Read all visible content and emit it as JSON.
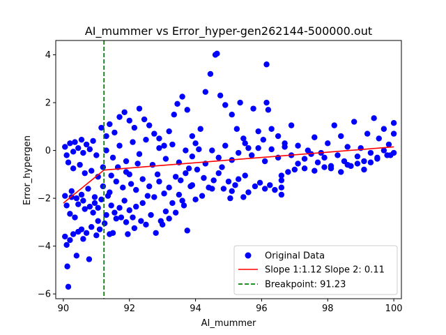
{
  "chart_data": {
    "type": "scatter",
    "title": "AI_mummer vs Error_hyper-gen262144-500000.out",
    "xlabel": "AI_mummer",
    "ylabel": "Error_hypergen",
    "xlim": [
      89.77,
      100.23
    ],
    "ylim": [
      -6.2,
      4.6
    ],
    "xticks": [
      90,
      92,
      94,
      96,
      98,
      100
    ],
    "xtick_labels": [
      "90",
      "92",
      "94",
      "96",
      "98",
      "100"
    ],
    "yticks": [
      -6,
      -4,
      -2,
      0,
      2,
      4
    ],
    "ytick_labels": [
      "−6",
      "−4",
      "−2",
      "0",
      "2",
      "4"
    ],
    "grid": false,
    "legend_position": "bottom-right",
    "series": [
      {
        "name": "Original Data",
        "kind": "scatter",
        "color": "#0000ff",
        "points": [
          [
            90.15,
            -5.7
          ],
          [
            90.12,
            -4.85
          ],
          [
            90.78,
            -4.55
          ],
          [
            90.4,
            -4.4
          ],
          [
            90.1,
            -3.95
          ],
          [
            90.05,
            -3.6
          ],
          [
            90.2,
            -3.75
          ],
          [
            90.3,
            -3.5
          ],
          [
            90.45,
            -3.4
          ],
          [
            90.6,
            -3.7
          ],
          [
            90.55,
            -3.3
          ],
          [
            90.7,
            -3.45
          ],
          [
            90.85,
            -3.2
          ],
          [
            91.0,
            -3.55
          ],
          [
            91.1,
            -3.3
          ],
          [
            91.25,
            -3.05
          ],
          [
            91.4,
            -3.5
          ],
          [
            91.5,
            -3.45
          ],
          [
            91.6,
            -2.85
          ],
          [
            91.3,
            -2.7
          ],
          [
            91.05,
            -2.95
          ],
          [
            90.9,
            -2.6
          ],
          [
            90.65,
            -2.45
          ],
          [
            90.35,
            -2.8
          ],
          [
            90.2,
            -2.65
          ],
          [
            90.1,
            -2.3
          ],
          [
            90.05,
            -1.9
          ],
          [
            90.25,
            -1.7
          ],
          [
            90.4,
            -2.0
          ],
          [
            90.55,
            -1.85
          ],
          [
            90.75,
            -1.6
          ],
          [
            90.95,
            -1.95
          ],
          [
            91.15,
            -2.05
          ],
          [
            91.35,
            -1.9
          ],
          [
            91.45,
            -2.3
          ],
          [
            91.55,
            -2.6
          ],
          [
            91.7,
            -2.4
          ],
          [
            91.85,
            -2.1
          ],
          [
            92.0,
            -2.5
          ],
          [
            92.1,
            -2.8
          ],
          [
            92.2,
            -2.35
          ],
          [
            92.35,
            -2.95
          ],
          [
            92.5,
            -3.1
          ],
          [
            92.65,
            -2.7
          ],
          [
            92.8,
            -3.45
          ],
          [
            92.95,
            -2.95
          ],
          [
            93.1,
            -2.55
          ],
          [
            93.2,
            -2.85
          ],
          [
            93.3,
            -2.2
          ],
          [
            93.5,
            -1.85
          ],
          [
            93.65,
            -2.3
          ],
          [
            93.75,
            -3.35
          ],
          [
            93.85,
            -1.5
          ],
          [
            94.0,
            -2.05
          ],
          [
            92.05,
            -1.4
          ],
          [
            92.2,
            -1.65
          ],
          [
            92.4,
            -1.2
          ],
          [
            92.6,
            -1.5
          ],
          [
            92.75,
            -1.95
          ],
          [
            92.9,
            -1.3
          ],
          [
            93.05,
            -1.8
          ],
          [
            93.2,
            -1.55
          ],
          [
            93.4,
            -1.1
          ],
          [
            93.55,
            -1.25
          ],
          [
            93.7,
            -0.95
          ],
          [
            93.9,
            -1.45
          ],
          [
            94.05,
            -0.8
          ],
          [
            94.25,
            -1.15
          ],
          [
            94.4,
            -1.55
          ],
          [
            94.55,
            -1.25
          ],
          [
            94.7,
            -0.95
          ],
          [
            94.85,
            -1.6
          ],
          [
            95.0,
            -1.3
          ],
          [
            95.1,
            -1.7
          ],
          [
            95.3,
            -1.2
          ],
          [
            95.45,
            -1.95
          ],
          [
            95.6,
            -1.75
          ],
          [
            95.8,
            -1.5
          ],
          [
            95.95,
            -1.35
          ],
          [
            96.1,
            -1.6
          ],
          [
            96.25,
            -1.45
          ],
          [
            96.4,
            -1.65
          ],
          [
            96.6,
            -1.85
          ],
          [
            96.6,
            -1.55
          ],
          [
            96.6,
            -1.25
          ],
          [
            96.6,
            -1.05
          ],
          [
            96.8,
            -0.9
          ],
          [
            97.0,
            -0.8
          ],
          [
            97.3,
            -0.75
          ],
          [
            97.6,
            -0.85
          ],
          [
            97.9,
            -0.7
          ],
          [
            98.1,
            -0.65
          ],
          [
            98.4,
            -0.9
          ],
          [
            98.6,
            -0.6
          ],
          [
            98.9,
            -0.55
          ],
          [
            99.1,
            -0.8
          ],
          [
            99.3,
            -0.5
          ],
          [
            99.5,
            -0.35
          ],
          [
            99.8,
            -0.2
          ],
          [
            100.0,
            -0.1
          ],
          [
            90.05,
            0.15
          ],
          [
            90.1,
            -0.2
          ],
          [
            90.2,
            0.3
          ],
          [
            90.3,
            -0.05
          ],
          [
            90.35,
            0.35
          ],
          [
            90.45,
            0.1
          ],
          [
            90.55,
            0.45
          ],
          [
            90.6,
            -0.1
          ],
          [
            90.7,
            0.25
          ],
          [
            90.8,
            0.05
          ],
          [
            90.9,
            0.4
          ],
          [
            91.0,
            -0.2
          ],
          [
            90.15,
            -0.5
          ],
          [
            90.3,
            -0.75
          ],
          [
            90.5,
            -0.6
          ],
          [
            90.65,
            -0.95
          ],
          [
            90.85,
            -0.85
          ],
          [
            91.05,
            -1.1
          ],
          [
            91.2,
            -0.7
          ],
          [
            91.3,
            0.6
          ],
          [
            91.15,
            0.95
          ],
          [
            91.4,
            1.1
          ],
          [
            91.55,
            0.75
          ],
          [
            91.7,
            1.4
          ],
          [
            91.85,
            1.6
          ],
          [
            92.0,
            1.25
          ],
          [
            92.15,
            0.95
          ],
          [
            92.3,
            1.75
          ],
          [
            92.45,
            1.3
          ],
          [
            92.6,
            1.05
          ],
          [
            92.75,
            0.7
          ],
          [
            92.9,
            0.5
          ],
          [
            93.05,
            0.2
          ],
          [
            93.2,
            0.8
          ],
          [
            93.35,
            1.5
          ],
          [
            93.45,
            1.95
          ],
          [
            93.6,
            2.25
          ],
          [
            93.75,
            1.7
          ],
          [
            93.9,
            0.6
          ],
          [
            94.0,
            0.3
          ],
          [
            94.15,
            0.9
          ],
          [
            94.3,
            2.45
          ],
          [
            94.45,
            3.2
          ],
          [
            94.6,
            4.0
          ],
          [
            94.65,
            4.05
          ],
          [
            94.75,
            2.3
          ],
          [
            94.9,
            1.9
          ],
          [
            95.1,
            1.5
          ],
          [
            95.25,
            0.9
          ],
          [
            95.35,
            2.0
          ],
          [
            95.45,
            0.5
          ],
          [
            95.6,
            0.1
          ],
          [
            95.75,
            1.75
          ],
          [
            95.9,
            0.8
          ],
          [
            96.05,
            0.45
          ],
          [
            96.15,
            3.6
          ],
          [
            96.15,
            2.0
          ],
          [
            96.2,
            1.7
          ],
          [
            96.3,
            0.9
          ],
          [
            96.5,
            0.6
          ],
          [
            96.7,
            0.3
          ],
          [
            96.9,
            1.05
          ],
          [
            97.1,
            0.2
          ],
          [
            97.4,
            0.0
          ],
          [
            97.6,
            0.55
          ],
          [
            97.8,
            -0.1
          ],
          [
            98.0,
            0.3
          ],
          [
            98.2,
            1.05
          ],
          [
            98.4,
            0.6
          ],
          [
            98.6,
            0.15
          ],
          [
            98.8,
            1.2
          ],
          [
            99.0,
            0.1
          ],
          [
            99.2,
            0.7
          ],
          [
            99.4,
            1.35
          ],
          [
            99.55,
            0.5
          ],
          [
            99.7,
            0.9
          ],
          [
            99.85,
            0.25
          ],
          [
            100.0,
            1.15
          ],
          [
            100.0,
            0.7
          ],
          [
            91.3,
            0.0
          ],
          [
            91.5,
            -0.3
          ],
          [
            91.7,
            0.2
          ],
          [
            91.9,
            -0.45
          ],
          [
            92.1,
            0.35
          ],
          [
            92.3,
            -0.15
          ],
          [
            92.5,
            0.45
          ],
          [
            92.7,
            -0.6
          ],
          [
            92.9,
            0.1
          ],
          [
            93.1,
            -0.35
          ],
          [
            93.3,
            0.25
          ],
          [
            93.5,
            -0.5
          ],
          [
            93.7,
            0.0
          ],
          [
            93.9,
            -0.25
          ],
          [
            94.1,
            0.05
          ],
          [
            94.3,
            -0.55
          ],
          [
            94.5,
            0.0
          ],
          [
            94.7,
            -0.3
          ],
          [
            94.9,
            0.2
          ],
          [
            95.1,
            -0.4
          ],
          [
            95.3,
            -0.1
          ],
          [
            95.5,
            0.3
          ],
          [
            95.7,
            -0.2
          ],
          [
            95.9,
            0.1
          ],
          [
            96.1,
            -0.45
          ],
          [
            96.3,
            0.05
          ],
          [
            96.5,
            -0.3
          ],
          [
            96.7,
            0.15
          ],
          [
            96.9,
            -0.2
          ],
          [
            97.1,
            -0.55
          ],
          [
            97.3,
            -0.35
          ],
          [
            97.5,
            -0.15
          ],
          [
            97.7,
            -0.5
          ],
          [
            97.9,
            -0.3
          ],
          [
            98.1,
            -0.75
          ],
          [
            98.3,
            -0.2
          ],
          [
            98.5,
            -0.45
          ],
          [
            98.7,
            -0.65
          ],
          [
            98.9,
            -0.25
          ],
          [
            99.1,
            -0.45
          ],
          [
            99.3,
            -0.1
          ],
          [
            99.5,
            -0.3
          ],
          [
            99.7,
            0.0
          ],
          [
            99.9,
            -0.2
          ],
          [
            91.2,
            -1.5
          ],
          [
            91.4,
            -1.75
          ],
          [
            91.6,
            -1.3
          ],
          [
            91.8,
            -1.55
          ],
          [
            92.0,
            -1.0
          ],
          [
            91.95,
            -3.5
          ],
          [
            91.9,
            -3.0
          ],
          [
            92.15,
            -3.25
          ],
          [
            92.4,
            -2.2
          ],
          [
            92.55,
            -1.9
          ],
          [
            93.0,
            -3.1
          ],
          [
            93.4,
            -2.6
          ],
          [
            93.6,
            -2.1
          ],
          [
            94.2,
            -1.9
          ],
          [
            94.5,
            -1.6
          ],
          [
            95.05,
            -2.0
          ],
          [
            95.2,
            -1.45
          ],
          [
            95.5,
            -1.05
          ],
          [
            94.8,
            -0.7
          ],
          [
            93.8,
            -0.75
          ],
          [
            92.85,
            -1.0
          ],
          [
            92.25,
            -0.55
          ],
          [
            91.9,
            -0.9
          ],
          [
            91.65,
            -0.7
          ],
          [
            91.45,
            -1.05
          ],
          [
            91.75,
            -2.8
          ],
          [
            91.05,
            -2.4
          ],
          [
            90.95,
            -2.2
          ],
          [
            90.8,
            -2.35
          ],
          [
            90.6,
            -2.1
          ],
          [
            90.45,
            -2.25
          ],
          [
            90.25,
            -1.95
          ]
        ]
      },
      {
        "name": "Slope 1:1.12 Slope 2: 0.11",
        "kind": "line",
        "color": "#ff0000",
        "points": [
          [
            90.0,
            -2.2
          ],
          [
            91.23,
            -0.82
          ],
          [
            100.0,
            0.15
          ]
        ]
      },
      {
        "name": "Breakpoint: 91.23",
        "kind": "vline",
        "color": "#008000",
        "x": 91.23
      }
    ]
  }
}
